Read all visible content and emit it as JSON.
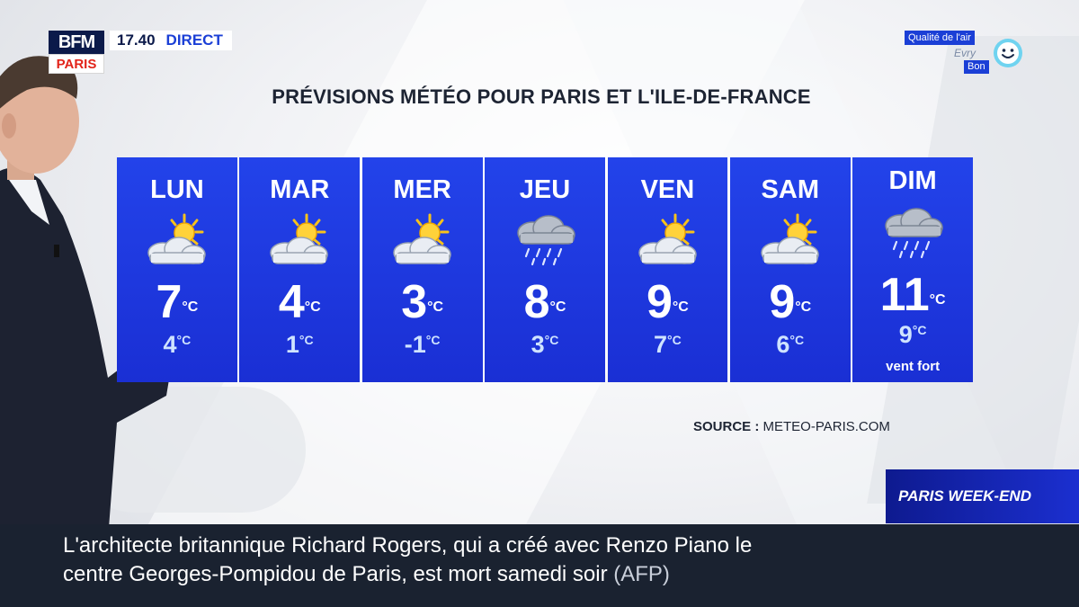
{
  "header": {
    "logo_top": "BFM",
    "logo_bottom": "PARIS",
    "time": "17.40",
    "live_label": "DIRECT"
  },
  "air_quality": {
    "title": "Qualité de l'air",
    "city": "Evry",
    "status": "Bon",
    "icon": "smiley-icon"
  },
  "forecast": {
    "title": "PRÉVISIONS MÉTÉO POUR PARIS ET L'ILE-DE-FRANCE",
    "degree_unit": "°C",
    "days": [
      {
        "name": "LUN",
        "icon": "sun-behind-cloud-icon",
        "tmax": "7",
        "tmin": "4",
        "note": ""
      },
      {
        "name": "MAR",
        "icon": "sun-behind-cloud-icon",
        "tmax": "4",
        "tmin": "1",
        "note": ""
      },
      {
        "name": "MER",
        "icon": "sun-behind-cloud-icon",
        "tmax": "3",
        "tmin": "-1",
        "note": ""
      },
      {
        "name": "JEU",
        "icon": "rain-cloud-icon",
        "tmax": "8",
        "tmin": "3",
        "note": ""
      },
      {
        "name": "VEN",
        "icon": "sun-behind-cloud-icon",
        "tmax": "9",
        "tmin": "7",
        "note": ""
      },
      {
        "name": "SAM",
        "icon": "sun-behind-cloud-icon",
        "tmax": "9",
        "tmin": "6",
        "note": ""
      },
      {
        "name": "DIM",
        "icon": "rain-cloud-icon",
        "tmax": "11",
        "tmin": "9",
        "note": "vent fort"
      }
    ],
    "source_label": "SOURCE :",
    "source_value": "METEO-PARIS.COM"
  },
  "program_tag": "PARIS WEEK-END",
  "ticker": {
    "line1": "L'architecte britannique Richard Rogers, qui a créé avec Renzo Piano le",
    "line2": "centre Georges-Pompidou de Paris, est mort samedi soir",
    "agency": "(AFP)"
  },
  "colors": {
    "panel_blue": "#1e35e0",
    "ticker_bg": "#1a2230",
    "tag_blue": "#1320a8"
  }
}
